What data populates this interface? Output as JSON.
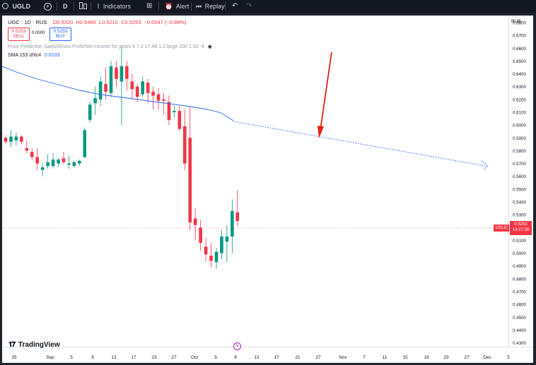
{
  "toolbar": {
    "symbol": "UGLD",
    "interval": "D",
    "indicators_label": "Indicators",
    "alert_label": "Alert",
    "replay_label": "Replay"
  },
  "legend": {
    "title": "UGC · 1D · RUS",
    "ohlc": {
      "o": "O0.5320",
      "h": "H0.5486",
      "l": "L0.5210",
      "c": "C0.5253",
      "chg": "−0.0047 (−0.89%)"
    },
    "sell_price": "0.5253",
    "sell_label": "SELL",
    "spread": "0.0000",
    "buy_price": "0.5253",
    "buy_label": "BUY",
    "prediction_text": "Price Prediction Sales/Gross Profit/Net Income for years 6 7.2 17.49 1.2 large 200 1.53 -4",
    "sma_label": "SMA 153 ohlc4",
    "sma_value": "0.6103"
  },
  "axis": {
    "currency": "RUB",
    "price_ticks": [
      "0.6800",
      "0.6700",
      "0.6600",
      "0.6500",
      "0.6400",
      "0.6300",
      "0.6200",
      "0.6100",
      "0.6000",
      "0.5900",
      "0.5800",
      "0.5700",
      "0.5600",
      "0.5500",
      "0.5400",
      "0.5300",
      "0.5100",
      "0.5000",
      "0.4900",
      "0.4800",
      "0.4700",
      "0.4600",
      "0.4500",
      "0.4400",
      "0.4300"
    ],
    "date_ticks": [
      "25",
      "Sep",
      "5",
      "9",
      "13",
      "17",
      "23",
      "27",
      "Oct",
      "5",
      "9",
      "13",
      "17",
      "21",
      "27",
      "Nov",
      "7",
      "11",
      "15",
      "19",
      "23",
      "27",
      "Dec",
      "5"
    ],
    "last_price_symbol": "UGLD",
    "last_price": "0.5253",
    "countdown": "14:27:39"
  },
  "brand": "TradingView",
  "colors": {
    "up": "#089981",
    "down": "#f23645",
    "sma": "#2962ff",
    "annotation_arrow": "#e2231a",
    "last_price_line": "#f23645"
  },
  "chart_data": {
    "type": "candlestick",
    "symbol": "UGLD",
    "interval": "1D",
    "ylim": [
      0.427,
      0.6855
    ],
    "x_axis": [
      "25",
      "Sep",
      "5",
      "9",
      "13",
      "17",
      "23",
      "27",
      "Oct",
      "5",
      "9",
      "13",
      "17",
      "21",
      "27",
      "Nov",
      "7",
      "11",
      "15",
      "19",
      "23",
      "27",
      "Dec",
      "5"
    ],
    "candles_ohlc": [
      [
        0.59,
        0.592,
        0.585,
        0.587
      ],
      [
        0.587,
        0.596,
        0.583,
        0.591
      ],
      [
        0.588,
        0.594,
        0.584,
        0.591
      ],
      [
        0.591,
        0.592,
        0.585,
        0.587
      ],
      [
        0.582,
        0.588,
        0.578,
        0.58
      ],
      [
        0.579,
        0.582,
        0.573,
        0.575
      ],
      [
        0.575,
        0.582,
        0.565,
        0.57
      ],
      [
        0.565,
        0.57,
        0.56,
        0.567
      ],
      [
        0.568,
        0.577,
        0.566,
        0.571
      ],
      [
        0.568,
        0.578,
        0.566,
        0.573
      ],
      [
        0.57,
        0.574,
        0.567,
        0.573
      ],
      [
        0.574,
        0.579,
        0.569,
        0.571
      ],
      [
        0.569,
        0.576,
        0.566,
        0.57
      ],
      [
        0.568,
        0.572,
        0.567,
        0.571
      ],
      [
        0.57,
        0.573,
        0.568,
        0.572
      ],
      [
        0.575,
        0.598,
        0.574,
        0.596
      ],
      [
        0.604,
        0.618,
        0.602,
        0.616
      ],
      [
        0.617,
        0.63,
        0.608,
        0.621
      ],
      [
        0.62,
        0.638,
        0.615,
        0.634
      ],
      [
        0.632,
        0.645,
        0.62,
        0.626
      ],
      [
        0.625,
        0.65,
        0.622,
        0.646
      ],
      [
        0.645,
        0.65,
        0.63,
        0.636
      ],
      [
        0.634,
        0.661,
        0.6,
        0.646
      ],
      [
        0.646,
        0.65,
        0.627,
        0.636
      ],
      [
        0.634,
        0.64,
        0.62,
        0.628
      ],
      [
        0.63,
        0.632,
        0.618,
        0.622
      ],
      [
        0.624,
        0.638,
        0.622,
        0.634
      ],
      [
        0.633,
        0.636,
        0.617,
        0.625
      ],
      [
        0.626,
        0.63,
        0.612,
        0.623
      ],
      [
        0.624,
        0.629,
        0.612,
        0.619
      ],
      [
        0.62,
        0.625,
        0.608,
        0.619
      ],
      [
        0.618,
        0.623,
        0.6,
        0.604
      ],
      [
        0.61,
        0.615,
        0.606,
        0.611
      ],
      [
        0.611,
        0.615,
        0.595,
        0.597
      ],
      [
        0.599,
        0.612,
        0.565,
        0.57
      ],
      [
        0.59,
        0.614,
        0.518,
        0.524
      ],
      [
        0.527,
        0.535,
        0.51,
        0.522
      ],
      [
        0.52,
        0.526,
        0.502,
        0.508
      ],
      [
        0.505,
        0.512,
        0.493,
        0.499
      ],
      [
        0.498,
        0.508,
        0.489,
        0.494
      ],
      [
        0.493,
        0.504,
        0.488,
        0.501
      ],
      [
        0.5,
        0.518,
        0.495,
        0.513
      ],
      [
        0.509,
        0.522,
        0.493,
        0.513
      ],
      [
        0.513,
        0.542,
        0.5,
        0.533
      ],
      [
        0.532,
        0.549,
        0.521,
        0.525
      ]
    ],
    "sma": {
      "name": "SMA 153 ohlc4",
      "value": 0.6103
    },
    "projection": {
      "style": "dotted",
      "from": 0.6103,
      "to": 0.574
    }
  }
}
